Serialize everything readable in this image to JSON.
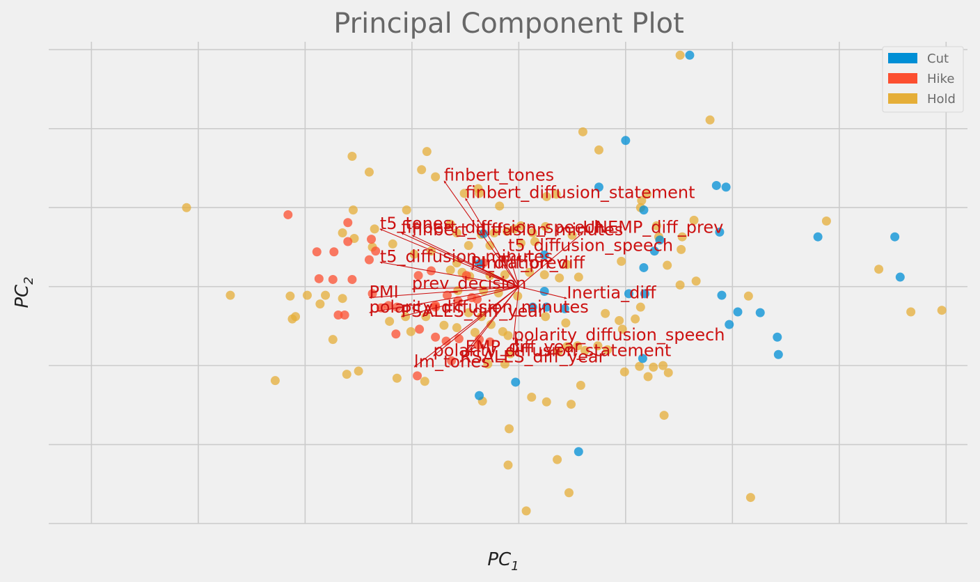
{
  "chart_data": {
    "type": "scatter",
    "title": "Principal Component Plot",
    "xlabel": "PC",
    "xlabel_sub": "1",
    "ylabel": "PC",
    "ylabel_sub": "2",
    "xlim": [
      -0.44,
      0.42
    ],
    "ylim": [
      -0.3,
      0.31
    ],
    "x_ticks": [
      -0.4,
      -0.3,
      -0.2,
      -0.1,
      0.0,
      0.1,
      0.2,
      0.3,
      0.4
    ],
    "y_ticks": [
      -0.3,
      -0.2,
      -0.1,
      0.0,
      0.1,
      0.2,
      0.3
    ],
    "tick_labels_visible": false,
    "grid": true,
    "legend": {
      "position": "top-right",
      "items": [
        {
          "label": "Cut",
          "color": "#008fd5"
        },
        {
          "label": "Hike",
          "color": "#fc4f30"
        },
        {
          "label": "Hold",
          "color": "#e5ae38"
        }
      ]
    },
    "series": [
      {
        "name": "Cut",
        "color": "#008fd5",
        "points": [
          [
            0.16,
            0.293
          ],
          [
            0.1,
            0.185
          ],
          [
            0.185,
            0.128
          ],
          [
            0.194,
            0.126
          ],
          [
            0.075,
            0.126
          ],
          [
            0.117,
            0.097
          ],
          [
            0.188,
            0.069
          ],
          [
            0.132,
            0.059
          ],
          [
            0.127,
            0.045
          ],
          [
            0.024,
            0.04
          ],
          [
            0.117,
            0.024
          ],
          [
            0.28,
            0.063
          ],
          [
            0.352,
            0.063
          ],
          [
            0.357,
            0.012
          ],
          [
            0.19,
            -0.011
          ],
          [
            0.205,
            -0.032
          ],
          [
            0.226,
            -0.033
          ],
          [
            0.197,
            -0.048
          ],
          [
            0.242,
            -0.064
          ],
          [
            0.243,
            -0.086
          ],
          [
            0.103,
            -0.009
          ],
          [
            0.118,
            -0.009
          ],
          [
            0.024,
            -0.006
          ],
          [
            0.013,
            -0.026
          ],
          [
            0.026,
            -0.026
          ],
          [
            0.043,
            -0.028
          ],
          [
            -0.033,
            0.067
          ],
          [
            -0.037,
            0.029
          ],
          [
            0.116,
            -0.091
          ],
          [
            -0.003,
            -0.121
          ],
          [
            -0.037,
            -0.138
          ],
          [
            0.056,
            -0.209
          ]
        ]
      },
      {
        "name": "Hike",
        "color": "#fc4f30",
        "points": [
          [
            -0.216,
            0.091
          ],
          [
            -0.16,
            0.081
          ],
          [
            -0.138,
            0.06
          ],
          [
            -0.16,
            0.057
          ],
          [
            -0.173,
            0.044
          ],
          [
            -0.134,
            0.045
          ],
          [
            -0.14,
            0.034
          ],
          [
            -0.189,
            0.044
          ],
          [
            -0.174,
            0.009
          ],
          [
            -0.187,
            0.01
          ],
          [
            -0.156,
            0.009
          ],
          [
            -0.137,
            -0.009
          ],
          [
            -0.114,
            -0.026
          ],
          [
            -0.129,
            -0.027
          ],
          [
            -0.122,
            -0.024
          ],
          [
            -0.163,
            -0.036
          ],
          [
            -0.169,
            -0.036
          ],
          [
            -0.115,
            -0.06
          ],
          [
            -0.093,
            -0.054
          ],
          [
            -0.078,
            -0.024
          ],
          [
            -0.067,
            -0.011
          ],
          [
            -0.094,
            0.014
          ],
          [
            -0.082,
            0.02
          ],
          [
            -0.057,
            -0.018
          ],
          [
            -0.078,
            -0.026
          ],
          [
            -0.044,
            -0.014
          ],
          [
            -0.039,
            -0.016
          ],
          [
            -0.033,
            0.03
          ],
          [
            -0.049,
            0.014
          ],
          [
            -0.078,
            -0.064
          ],
          [
            -0.068,
            -0.069
          ],
          [
            -0.056,
            -0.066
          ],
          [
            -0.063,
            -0.094
          ],
          [
            -0.037,
            -0.067
          ],
          [
            -0.095,
            -0.113
          ],
          [
            -0.027,
            -0.07
          ],
          [
            -0.038,
            -0.074
          ]
        ]
      },
      {
        "name": "Hold",
        "color": "#e5ae38",
        "points": [
          [
            -0.311,
            0.1
          ],
          [
            -0.156,
            0.165
          ],
          [
            -0.14,
            0.145
          ],
          [
            -0.086,
            0.171
          ],
          [
            -0.091,
            0.148
          ],
          [
            -0.078,
            0.139
          ],
          [
            -0.051,
            0.118
          ],
          [
            -0.038,
            0.124
          ],
          [
            -0.037,
            0.118
          ],
          [
            -0.018,
            0.102
          ],
          [
            0.026,
            0.114
          ],
          [
            0.035,
            0.117
          ],
          [
            0.06,
            0.196
          ],
          [
            0.075,
            0.173
          ],
          [
            0.151,
            0.293
          ],
          [
            0.179,
            0.211
          ],
          [
            0.12,
            0.117
          ],
          [
            0.115,
            0.109
          ],
          [
            0.114,
            0.1
          ],
          [
            0.129,
            0.077
          ],
          [
            0.131,
            0.063
          ],
          [
            0.153,
            0.063
          ],
          [
            0.152,
            0.047
          ],
          [
            0.164,
            0.084
          ],
          [
            0.288,
            0.083
          ],
          [
            0.337,
            0.022
          ],
          [
            0.367,
            -0.032
          ],
          [
            0.396,
            -0.03
          ],
          [
            0.215,
            -0.012
          ],
          [
            0.166,
            0.007
          ],
          [
            0.151,
            0.002
          ],
          [
            0.139,
            0.027
          ],
          [
            0.096,
            0.032
          ],
          [
            0.114,
            -0.026
          ],
          [
            0.109,
            -0.041
          ],
          [
            0.094,
            -0.043
          ],
          [
            0.097,
            -0.054
          ],
          [
            0.081,
            -0.034
          ],
          [
            0.113,
            -0.101
          ],
          [
            0.126,
            -0.102
          ],
          [
            0.135,
            -0.1
          ],
          [
            0.121,
            -0.114
          ],
          [
            0.14,
            -0.109
          ],
          [
            0.136,
            -0.163
          ],
          [
            0.099,
            -0.108
          ],
          [
            0.058,
            -0.125
          ],
          [
            0.045,
            -0.076
          ],
          [
            0.074,
            -0.075
          ],
          [
            0.049,
            -0.149
          ],
          [
            0.012,
            -0.14
          ],
          [
            0.026,
            -0.146
          ],
          [
            -0.009,
            -0.18
          ],
          [
            0.036,
            -0.219
          ],
          [
            0.047,
            -0.261
          ],
          [
            0.217,
            -0.267
          ],
          [
            0.007,
            -0.284
          ],
          [
            -0.01,
            -0.226
          ],
          [
            -0.034,
            -0.145
          ],
          [
            -0.15,
            -0.107
          ],
          [
            -0.161,
            -0.111
          ],
          [
            -0.228,
            -0.119
          ],
          [
            -0.114,
            -0.116
          ],
          [
            -0.174,
            -0.067
          ],
          [
            -0.186,
            -0.022
          ],
          [
            -0.209,
            -0.038
          ],
          [
            -0.198,
            -0.011
          ],
          [
            -0.214,
            -0.012
          ],
          [
            -0.27,
            -0.011
          ],
          [
            -0.212,
            -0.041
          ],
          [
            -0.165,
            -0.015
          ],
          [
            -0.101,
            -0.057
          ],
          [
            -0.088,
            -0.12
          ],
          [
            -0.181,
            -0.011
          ],
          [
            -0.135,
            0.073
          ],
          [
            -0.154,
            0.061
          ],
          [
            -0.118,
            0.054
          ],
          [
            -0.137,
            0.05
          ],
          [
            -0.165,
            0.068
          ],
          [
            -0.155,
            0.097
          ],
          [
            -0.105,
            0.097
          ],
          [
            -0.064,
            0.079
          ],
          [
            -0.058,
            0.068
          ],
          [
            -0.035,
            0.066
          ],
          [
            -0.023,
            0.068
          ],
          [
            -0.011,
            0.07
          ],
          [
            -0.004,
            0.073
          ],
          [
            0.002,
            0.077
          ],
          [
            0.013,
            0.068
          ],
          [
            0.025,
            0.076
          ],
          [
            0.05,
            0.065
          ],
          [
            0.015,
            0.057
          ],
          [
            0.002,
            0.055
          ],
          [
            -0.027,
            0.052
          ],
          [
            -0.047,
            0.052
          ],
          [
            -0.082,
            0.045
          ],
          [
            -0.098,
            0.041
          ],
          [
            -0.058,
            0.03
          ],
          [
            -0.064,
            0.021
          ],
          [
            -0.053,
            0.018
          ],
          [
            -0.046,
            0.013
          ],
          [
            -0.027,
            0.014
          ],
          [
            -0.013,
            0.015
          ],
          [
            0.01,
            0.018
          ],
          [
            0.024,
            0.015
          ],
          [
            0.038,
            0.011
          ],
          [
            0.045,
            0.028
          ],
          [
            0.056,
            0.012
          ],
          [
            -0.057,
            -0.005
          ],
          [
            -0.033,
            -0.005
          ],
          [
            -0.019,
            -0.008
          ],
          [
            -0.001,
            -0.012
          ],
          [
            -0.047,
            -0.033
          ],
          [
            -0.035,
            -0.038
          ],
          [
            -0.026,
            -0.048
          ],
          [
            -0.015,
            -0.057
          ],
          [
            -0.087,
            -0.038
          ],
          [
            -0.106,
            -0.038
          ],
          [
            -0.121,
            -0.044
          ],
          [
            -0.07,
            -0.049
          ],
          [
            -0.058,
            -0.052
          ],
          [
            -0.041,
            -0.058
          ],
          [
            -0.01,
            -0.062
          ],
          [
            -0.008,
            -0.085
          ],
          [
            -0.013,
            -0.098
          ],
          [
            -0.029,
            -0.098
          ],
          [
            0.025,
            -0.038
          ],
          [
            0.044,
            -0.046
          ],
          [
            0.037,
            -0.082
          ],
          [
            0.062,
            -0.081
          ],
          [
            0.083,
            -0.08
          ],
          [
            0.055,
            -0.075
          ]
        ]
      }
    ],
    "loadings": [
      {
        "label": "finbert_tones",
        "x": -0.07,
        "y": 0.134
      },
      {
        "label": "finbert_diffusion_statement",
        "x": -0.05,
        "y": 0.112
      },
      {
        "label": "t5_tones",
        "x": -0.13,
        "y": 0.073
      },
      {
        "label": "finbert_diffusion_speech",
        "x": -0.11,
        "y": 0.068
      },
      {
        "label": "finbert_diffusion_minutes",
        "x": -0.1,
        "y": 0.065
      },
      {
        "label": "UNEMP_diff_prev",
        "x": 0.06,
        "y": 0.068
      },
      {
        "label": "t5_diffusion_speech",
        "x": -0.01,
        "y": 0.045
      },
      {
        "label": "t5_diffusion_minutes",
        "x": -0.13,
        "y": 0.031
      },
      {
        "label": "PI_diff_prev",
        "x": -0.045,
        "y": 0.023
      },
      {
        "label": "Inflation_diff",
        "x": -0.035,
        "y": 0.023
      },
      {
        "label": "prev_decision",
        "x": -0.1,
        "y": -0.003
      },
      {
        "label": "PMI",
        "x": -0.14,
        "y": -0.014
      },
      {
        "label": "Inertia_diff",
        "x": 0.045,
        "y": -0.015
      },
      {
        "label": "polarity_diffusion_minutes",
        "x": -0.14,
        "y": -0.033
      },
      {
        "label": "PSALES_diff_year",
        "x": -0.11,
        "y": -0.038
      },
      {
        "label": "polarity_diffusion_speech",
        "x": -0.005,
        "y": -0.068
      },
      {
        "label": "EMP_diff_year",
        "x": -0.05,
        "y": -0.083
      },
      {
        "label": "polarity_diffusion_statement",
        "x": -0.08,
        "y": -0.088
      },
      {
        "label": "RSALES_diff_year",
        "x": -0.055,
        "y": -0.096
      },
      {
        "label": "lm_tones",
        "x": -0.098,
        "y": -0.102
      }
    ]
  }
}
